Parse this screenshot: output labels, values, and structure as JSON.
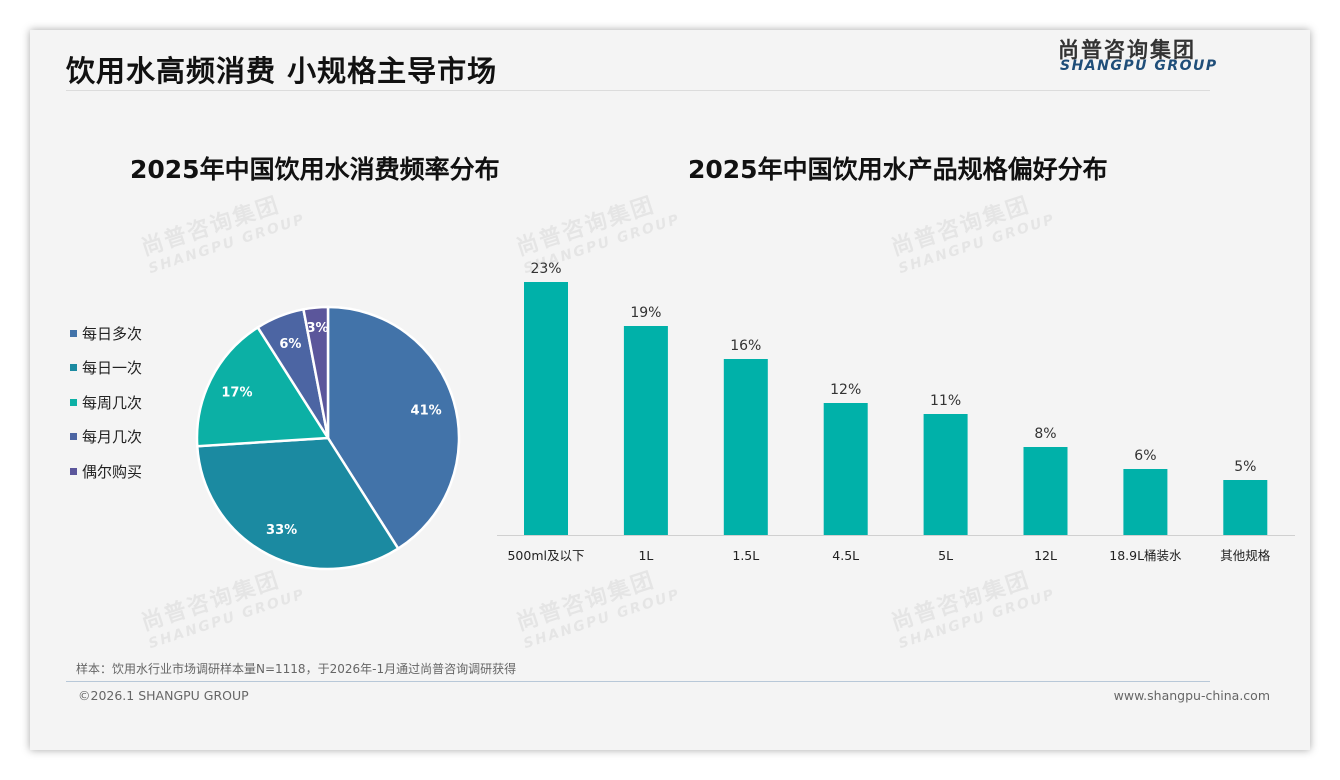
{
  "header": {
    "title": "饮用水高频消费 小规格主导市场",
    "logo_cn": "尚普咨询集团",
    "logo_en": "SHANGPU GROUP"
  },
  "footer": {
    "note": "样本：饮用水行业市场调研样本量N=1118，于2026年-1月通过尚普咨询调研获得",
    "copyright": "©2026.1 SHANGPU GROUP",
    "url": "www.shangpu-china.com"
  },
  "chart_data": [
    {
      "type": "pie",
      "title": "2025年中国饮用水消费频率分布",
      "legend_position": "left",
      "categories": [
        "每日多次",
        "每日一次",
        "每周几次",
        "每月几次",
        "偶尔购买"
      ],
      "values": [
        41,
        33,
        17,
        6,
        3
      ],
      "labels": [
        "41%",
        "33%",
        "17%",
        "6%",
        "3%"
      ],
      "colors": [
        "#4273a9",
        "#1b8aa1",
        "#0cb0a5",
        "#4c65a3",
        "#5b569b"
      ]
    },
    {
      "type": "bar",
      "title": "2025年中国饮用水产品规格偏好分布",
      "categories": [
        "500ml及以下",
        "1L",
        "1.5L",
        "4.5L",
        "5L",
        "12L",
        "18.9L桶装水",
        "其他规格"
      ],
      "values": [
        23,
        19,
        16,
        12,
        11,
        8,
        6,
        5
      ],
      "labels": [
        "23%",
        "19%",
        "16%",
        "12%",
        "11%",
        "8%",
        "6%",
        "5%"
      ],
      "color": "#00b1a9",
      "ylim": [
        0,
        25
      ],
      "grid": false
    }
  ]
}
